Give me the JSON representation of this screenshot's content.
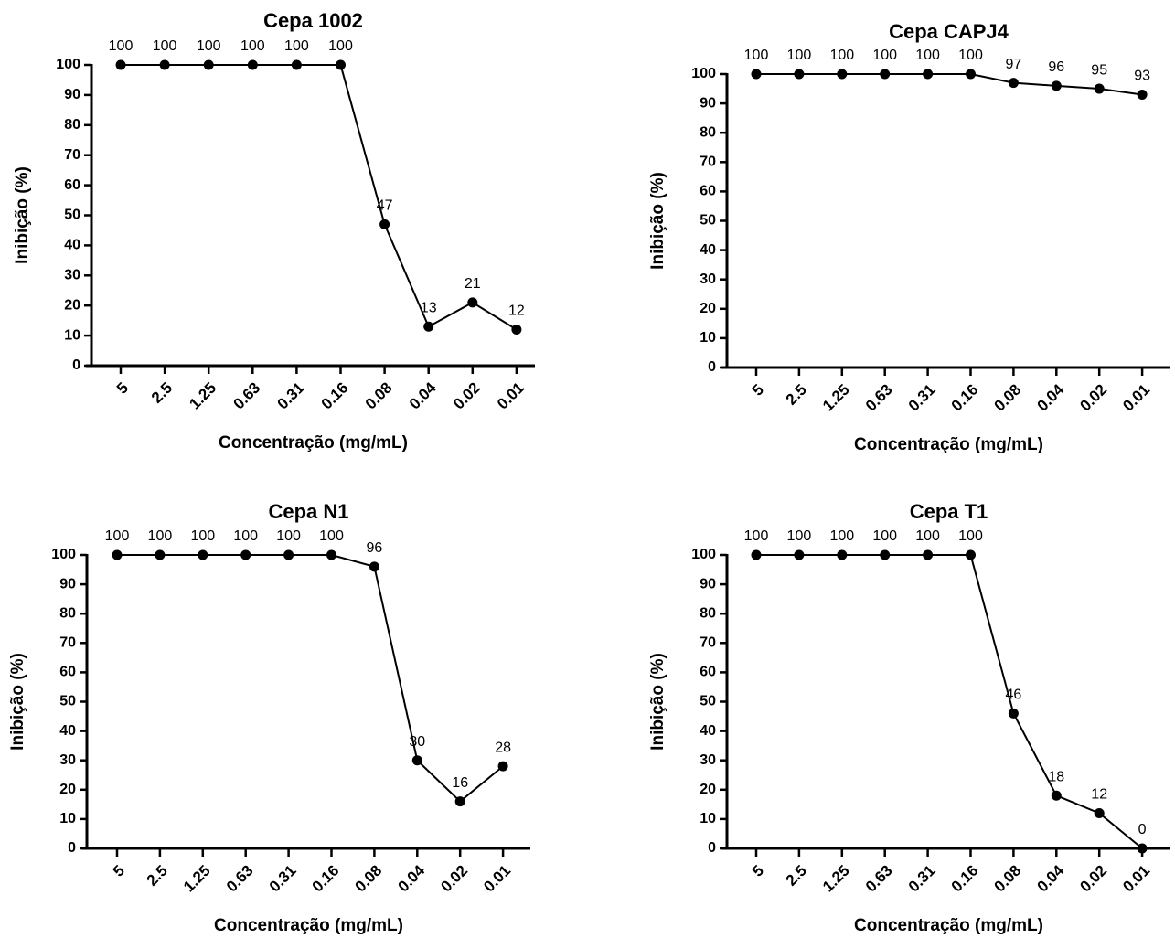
{
  "chart_data": [
    {
      "type": "line",
      "title": "Cepa 1002",
      "x_label": "Concentração (mg/mL)",
      "y_label": "Inibição (%)",
      "categories": [
        "5",
        "2.5",
        "1.25",
        "0.63",
        "0.31",
        "0.16",
        "0.08",
        "0.04",
        "0.02",
        "0.01"
      ],
      "values": [
        100,
        100,
        100,
        100,
        100,
        100,
        47,
        13,
        21,
        12
      ],
      "color": "#000000",
      "ylim": [
        0,
        100
      ],
      "yticks": [
        0,
        10,
        20,
        30,
        40,
        50,
        60,
        70,
        80,
        90,
        100
      ]
    },
    {
      "type": "line",
      "title": "Cepa CAPJ4",
      "x_label": "Concentração (mg/mL)",
      "y_label": "Inibição (%)",
      "categories": [
        "5",
        "2.5",
        "1.25",
        "0.63",
        "0.31",
        "0.16",
        "0.08",
        "0.04",
        "0.02",
        "0.01"
      ],
      "values": [
        100,
        100,
        100,
        100,
        100,
        100,
        97,
        96,
        95,
        93
      ],
      "color": "#000000",
      "ylim": [
        0,
        100
      ],
      "yticks": [
        0,
        10,
        20,
        30,
        40,
        50,
        60,
        70,
        80,
        90,
        100
      ]
    },
    {
      "type": "line",
      "title": "Cepa N1",
      "x_label": "Concentração (mg/mL)",
      "y_label": "Inibição (%)",
      "categories": [
        "5",
        "2.5",
        "1.25",
        "0.63",
        "0.31",
        "0.16",
        "0.08",
        "0.04",
        "0.02",
        "0.01"
      ],
      "values": [
        100,
        100,
        100,
        100,
        100,
        100,
        96,
        30,
        16,
        28
      ],
      "color": "#000000",
      "ylim": [
        0,
        100
      ],
      "yticks": [
        0,
        10,
        20,
        30,
        40,
        50,
        60,
        70,
        80,
        90,
        100
      ]
    },
    {
      "type": "line",
      "title": "Cepa T1",
      "x_label": "Concentração (mg/mL)",
      "y_label": "Inibição (%)",
      "categories": [
        "5",
        "2.5",
        "1.25",
        "0.63",
        "0.31",
        "0.16",
        "0.08",
        "0.04",
        "0.02",
        "0.01"
      ],
      "values": [
        100,
        100,
        100,
        100,
        100,
        100,
        46,
        18,
        12,
        0
      ],
      "color": "#000000",
      "ylim": [
        0,
        100
      ],
      "yticks": [
        0,
        10,
        20,
        30,
        40,
        50,
        60,
        70,
        80,
        90,
        100
      ]
    }
  ]
}
